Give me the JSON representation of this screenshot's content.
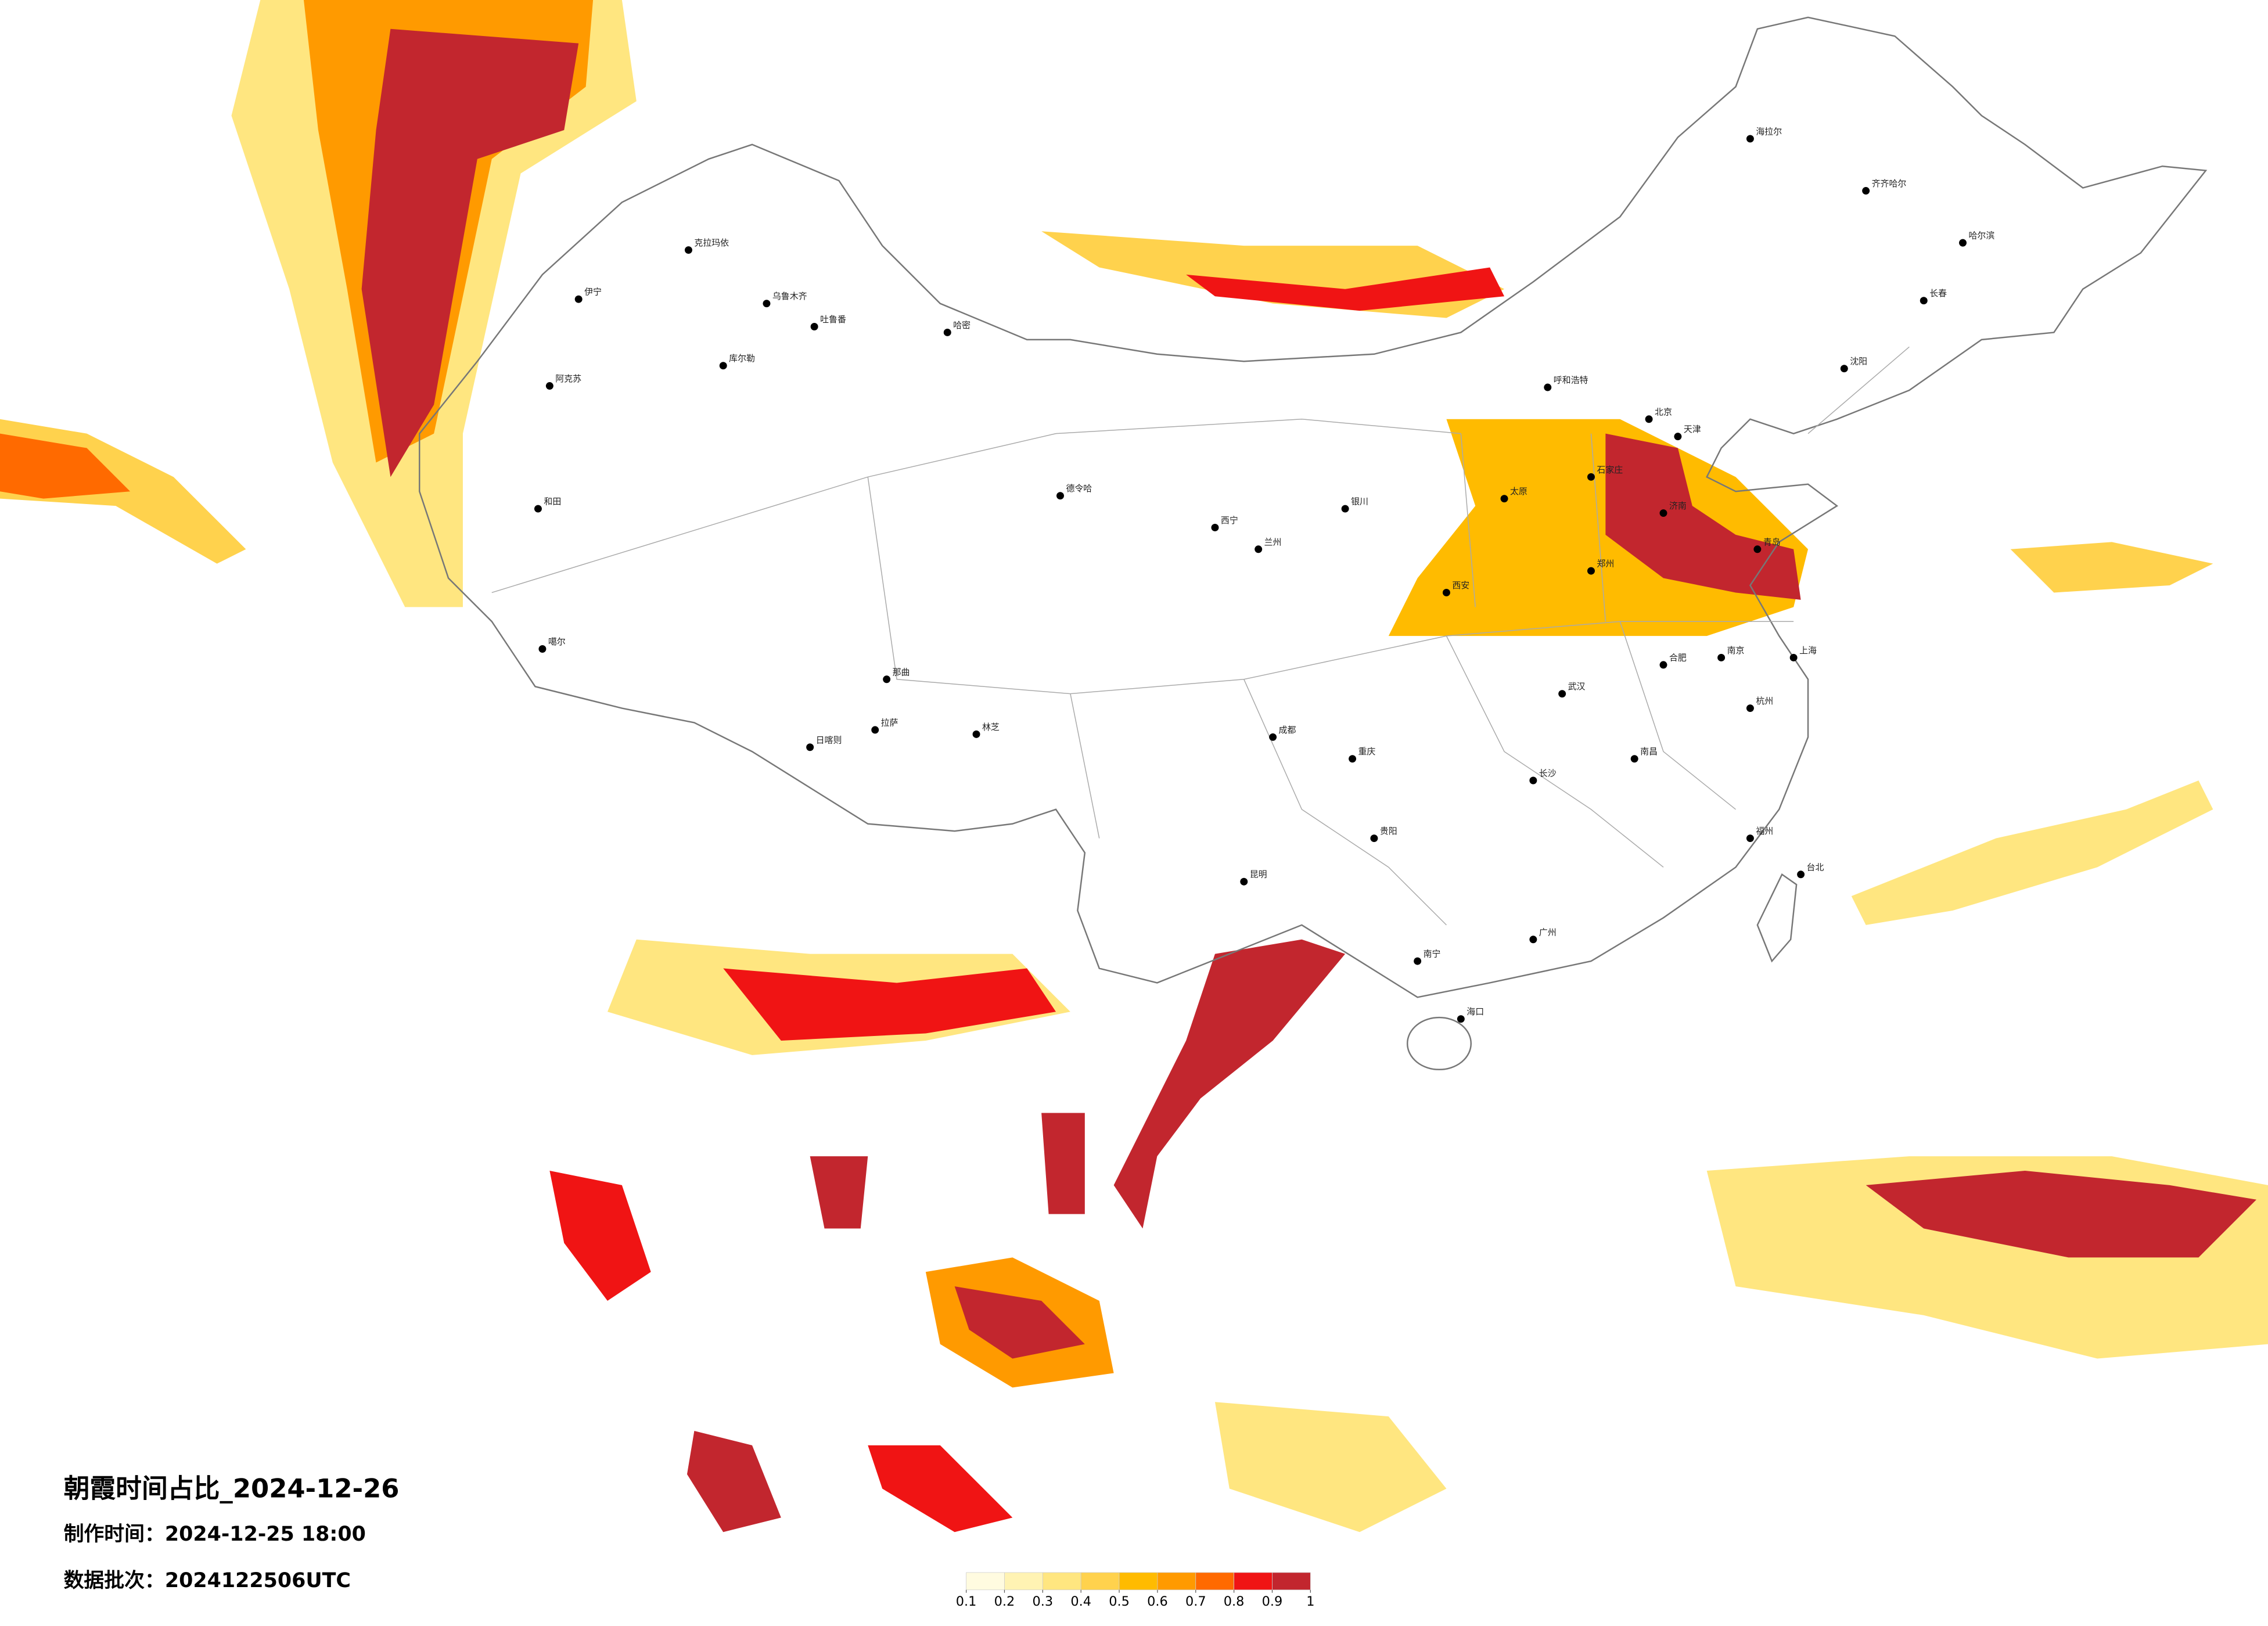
{
  "title": "朝霞时间占比_2024-12-26",
  "made_time": "制作时间：2024-12-25 18:00",
  "batch": "数据批次：2024122506UTC",
  "legend": {
    "ticks": [
      0.1,
      0.2,
      0.3,
      0.4,
      0.5,
      0.6,
      0.7,
      0.8,
      0.9,
      1
    ],
    "colors": [
      "#fffbe0",
      "#fff3b3",
      "#ffe680",
      "#ffd24d",
      "#ffbb00",
      "#ff9a00",
      "#ff6a00",
      "#f01414",
      "#c2262e"
    ]
  },
  "cities": [
    "克拉玛依",
    "伊宁",
    "乌鲁木齐",
    "吐鲁番",
    "哈密",
    "库尔勒",
    "阿克苏",
    "和田",
    "噶尔",
    "日喀则",
    "拉萨",
    "那曲",
    "林芝",
    "德令哈",
    "海拉尔",
    "齐齐哈尔",
    "哈尔滨",
    "长春",
    "沈阳",
    "北京",
    "天津",
    "石家庄",
    "太原",
    "呼和浩特",
    "银川",
    "兰州",
    "西宁",
    "西安",
    "郑州",
    "济南",
    "青岛",
    "南京",
    "上海",
    "杭州",
    "合肥",
    "武汉",
    "长沙",
    "南昌",
    "福州",
    "台北",
    "广州",
    "南宁",
    "海口",
    "贵阳",
    "昆明",
    "成都",
    "重庆"
  ]
}
